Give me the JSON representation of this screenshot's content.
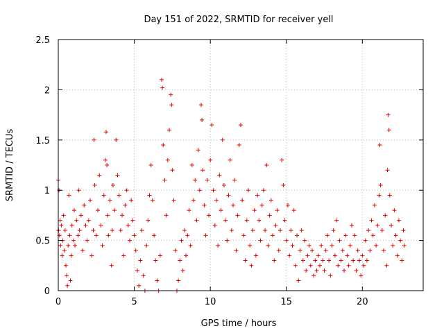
{
  "chart_data": {
    "type": "scatter",
    "title": "Day 151 of 2022, SRMTID for receiver yell",
    "xlabel": "GPS time / hours",
    "ylabel": "SRMTID / TECUs",
    "xlim": [
      0,
      24
    ],
    "ylim": [
      0,
      2.5
    ],
    "x_ticks": [
      0,
      5,
      10,
      15,
      20
    ],
    "x_tick_labels": [
      "0",
      "5",
      "10",
      "15",
      "20"
    ],
    "y_ticks": [
      0,
      0.5,
      1,
      1.5,
      2,
      2.5
    ],
    "y_tick_labels": [
      "0",
      "0.5",
      "1",
      "1.5",
      "2",
      "2.5"
    ],
    "grid": true,
    "marker": "+",
    "color": "#e00000",
    "series": [
      {
        "name": "SRMTID",
        "points": [
          [
            0.0,
            1.1
          ],
          [
            0.02,
            0.6
          ],
          [
            0.05,
            1.0
          ],
          [
            0.08,
            0.55
          ],
          [
            0.12,
            0.7
          ],
          [
            0.15,
            0.45
          ],
          [
            0.2,
            0.65
          ],
          [
            0.25,
            0.35
          ],
          [
            0.3,
            0.5
          ],
          [
            0.35,
            0.75
          ],
          [
            0.4,
            0.4
          ],
          [
            0.45,
            0.6
          ],
          [
            0.5,
            0.25
          ],
          [
            0.55,
            0.15
          ],
          [
            0.6,
            0.05
          ],
          [
            0.65,
            0.45
          ],
          [
            0.7,
            0.95
          ],
          [
            0.75,
            0.55
          ],
          [
            0.8,
            0.1
          ],
          [
            0.85,
            0.35
          ],
          [
            0.9,
            0.65
          ],
          [
            1.0,
            0.5
          ],
          [
            1.05,
            0.8
          ],
          [
            1.1,
            0.45
          ],
          [
            1.2,
            0.7
          ],
          [
            1.3,
            0.55
          ],
          [
            1.35,
            1.0
          ],
          [
            1.4,
            0.6
          ],
          [
            1.5,
            0.75
          ],
          [
            1.6,
            0.4
          ],
          [
            1.7,
            0.85
          ],
          [
            1.8,
            0.65
          ],
          [
            1.9,
            0.5
          ],
          [
            2.0,
            0.7
          ],
          [
            2.1,
            0.9
          ],
          [
            2.2,
            0.35
          ],
          [
            2.3,
            0.6
          ],
          [
            2.35,
            1.5
          ],
          [
            2.4,
            1.05
          ],
          [
            2.5,
            0.55
          ],
          [
            2.6,
            0.8
          ],
          [
            2.7,
            1.15
          ],
          [
            2.8,
            0.65
          ],
          [
            2.9,
            0.45
          ],
          [
            3.0,
            0.95
          ],
          [
            3.1,
            1.3
          ],
          [
            3.15,
            1.58
          ],
          [
            3.2,
            1.25
          ],
          [
            3.25,
            0.75
          ],
          [
            3.3,
            0.55
          ],
          [
            3.4,
            0.9
          ],
          [
            3.5,
            0.25
          ],
          [
            3.55,
            0.6
          ],
          [
            3.6,
            1.05
          ],
          [
            3.7,
            0.8
          ],
          [
            3.8,
            1.5
          ],
          [
            3.9,
            1.15
          ],
          [
            4.0,
            0.95
          ],
          [
            4.1,
            0.6
          ],
          [
            4.2,
            0.75
          ],
          [
            4.3,
            0.35
          ],
          [
            4.4,
            0.85
          ],
          [
            4.5,
            1.0
          ],
          [
            4.6,
            0.65
          ],
          [
            4.7,
            0.5
          ],
          [
            4.8,
            0.9
          ],
          [
            4.9,
            0.7
          ],
          [
            5.0,
            0.55
          ],
          [
            5.1,
            0.4
          ],
          [
            5.2,
            0.2
          ],
          [
            5.3,
            0.05
          ],
          [
            5.4,
            0.3
          ],
          [
            5.5,
            0.6
          ],
          [
            5.6,
            0.15
          ],
          [
            5.7,
            0.0
          ],
          [
            5.8,
            0.45
          ],
          [
            5.9,
            0.7
          ],
          [
            6.0,
            0.95
          ],
          [
            6.1,
            1.25
          ],
          [
            6.2,
            0.9
          ],
          [
            6.3,
            0.55
          ],
          [
            6.4,
            0.3
          ],
          [
            6.5,
            0.1
          ],
          [
            6.6,
            0.0
          ],
          [
            6.7,
            0.35
          ],
          [
            6.8,
            2.1
          ],
          [
            6.85,
            2.02
          ],
          [
            6.9,
            1.45
          ],
          [
            7.0,
            1.1
          ],
          [
            7.1,
            0.75
          ],
          [
            7.2,
            1.3
          ],
          [
            7.3,
            1.6
          ],
          [
            7.4,
            1.95
          ],
          [
            7.45,
            1.85
          ],
          [
            7.5,
            1.2
          ],
          [
            7.6,
            0.9
          ],
          [
            7.7,
            0.4
          ],
          [
            7.8,
            0.0
          ],
          [
            7.9,
            0.1
          ],
          [
            8.0,
            0.3
          ],
          [
            8.1,
            0.5
          ],
          [
            8.2,
            0.2
          ],
          [
            8.3,
            0.6
          ],
          [
            8.4,
            0.35
          ],
          [
            8.5,
            0.55
          ],
          [
            8.6,
            0.8
          ],
          [
            8.7,
            0.45
          ],
          [
            8.8,
            1.25
          ],
          [
            8.9,
            0.9
          ],
          [
            9.0,
            1.1
          ],
          [
            9.1,
            0.7
          ],
          [
            9.2,
            1.4
          ],
          [
            9.3,
            1.0
          ],
          [
            9.4,
            1.85
          ],
          [
            9.45,
            1.7
          ],
          [
            9.5,
            1.2
          ],
          [
            9.6,
            0.85
          ],
          [
            9.7,
            0.55
          ],
          [
            9.8,
            1.1
          ],
          [
            9.9,
            0.75
          ],
          [
            10.0,
            1.3
          ],
          [
            10.1,
            1.65
          ],
          [
            10.2,
            1.0
          ],
          [
            10.3,
            0.65
          ],
          [
            10.4,
            0.9
          ],
          [
            10.5,
            0.45
          ],
          [
            10.6,
            1.15
          ],
          [
            10.7,
            0.8
          ],
          [
            10.8,
            1.5
          ],
          [
            10.9,
            1.05
          ],
          [
            11.0,
            0.7
          ],
          [
            11.1,
            0.5
          ],
          [
            11.2,
            0.95
          ],
          [
            11.3,
            1.3
          ],
          [
            11.4,
            0.6
          ],
          [
            11.5,
            0.85
          ],
          [
            11.6,
            1.1
          ],
          [
            11.7,
            0.4
          ],
          [
            11.8,
            0.75
          ],
          [
            11.9,
            1.45
          ],
          [
            12.0,
            1.65
          ],
          [
            12.1,
            0.9
          ],
          [
            12.2,
            0.55
          ],
          [
            12.3,
            0.3
          ],
          [
            12.4,
            0.7
          ],
          [
            12.5,
            1.0
          ],
          [
            12.6,
            0.45
          ],
          [
            12.7,
            0.25
          ],
          [
            12.8,
            0.6
          ],
          [
            12.9,
            0.8
          ],
          [
            13.0,
            0.35
          ],
          [
            13.1,
            0.95
          ],
          [
            13.2,
            0.7
          ],
          [
            13.3,
            0.5
          ],
          [
            13.4,
            0.85
          ],
          [
            13.5,
            1.0
          ],
          [
            13.6,
            0.6
          ],
          [
            13.7,
            1.25
          ],
          [
            13.8,
            0.45
          ],
          [
            13.9,
            0.75
          ],
          [
            14.0,
            0.9
          ],
          [
            14.1,
            0.55
          ],
          [
            14.2,
            0.3
          ],
          [
            14.3,
            0.65
          ],
          [
            14.4,
            0.8
          ],
          [
            14.5,
            0.4
          ],
          [
            14.6,
            0.6
          ],
          [
            14.7,
            1.3
          ],
          [
            14.8,
            1.05
          ],
          [
            14.9,
            0.7
          ],
          [
            15.0,
            0.5
          ],
          [
            15.1,
            0.85
          ],
          [
            15.2,
            0.35
          ],
          [
            15.3,
            0.6
          ],
          [
            15.4,
            0.45
          ],
          [
            15.5,
            0.8
          ],
          [
            15.6,
            0.25
          ],
          [
            15.7,
            0.55
          ],
          [
            15.8,
            0.1
          ],
          [
            15.9,
            0.4
          ],
          [
            16.0,
            0.6
          ],
          [
            16.1,
            0.3
          ],
          [
            16.2,
            0.5
          ],
          [
            16.3,
            0.2
          ],
          [
            16.4,
            0.35
          ],
          [
            16.5,
            0.45
          ],
          [
            16.6,
            0.25
          ],
          [
            16.7,
            0.4
          ],
          [
            16.8,
            0.15
          ],
          [
            16.9,
            0.3
          ],
          [
            17.0,
            0.2
          ],
          [
            17.1,
            0.35
          ],
          [
            17.2,
            0.25
          ],
          [
            17.3,
            0.45
          ],
          [
            17.4,
            0.3
          ],
          [
            17.5,
            0.2
          ],
          [
            17.6,
            0.4
          ],
          [
            17.7,
            0.55
          ],
          [
            17.8,
            0.3
          ],
          [
            17.9,
            0.15
          ],
          [
            18.0,
            0.45
          ],
          [
            18.1,
            0.6
          ],
          [
            18.2,
            0.35
          ],
          [
            18.3,
            0.7
          ],
          [
            18.4,
            0.25
          ],
          [
            18.5,
            0.5
          ],
          [
            18.6,
            0.3
          ],
          [
            18.7,
            0.4
          ],
          [
            18.8,
            0.2
          ],
          [
            18.9,
            0.55
          ],
          [
            19.0,
            0.35
          ],
          [
            19.1,
            0.25
          ],
          [
            19.2,
            0.45
          ],
          [
            19.3,
            0.65
          ],
          [
            19.4,
            0.3
          ],
          [
            19.5,
            0.55
          ],
          [
            19.6,
            0.2
          ],
          [
            19.7,
            0.4
          ],
          [
            19.8,
            0.3
          ],
          [
            19.9,
            0.15
          ],
          [
            20.0,
            0.35
          ],
          [
            20.1,
            0.25
          ],
          [
            20.2,
            0.5
          ],
          [
            20.3,
            0.3
          ],
          [
            20.4,
            0.6
          ],
          [
            20.5,
            0.4
          ],
          [
            20.6,
            0.7
          ],
          [
            20.7,
            0.55
          ],
          [
            20.8,
            0.85
          ],
          [
            20.9,
            0.45
          ],
          [
            21.0,
            0.65
          ],
          [
            21.1,
            0.95
          ],
          [
            21.15,
            1.45
          ],
          [
            21.2,
            1.05
          ],
          [
            21.3,
            0.6
          ],
          [
            21.4,
            0.4
          ],
          [
            21.5,
            0.75
          ],
          [
            21.6,
            0.25
          ],
          [
            21.65,
            1.2
          ],
          [
            21.7,
            1.75
          ],
          [
            21.75,
            1.6
          ],
          [
            21.8,
            0.95
          ],
          [
            21.9,
            0.65
          ],
          [
            22.0,
            0.45
          ],
          [
            22.1,
            0.8
          ],
          [
            22.2,
            0.55
          ],
          [
            22.3,
            0.35
          ],
          [
            22.4,
            0.7
          ],
          [
            22.5,
            0.5
          ],
          [
            22.6,
            0.3
          ],
          [
            22.7,
            0.6
          ],
          [
            22.75,
            0.45
          ]
        ]
      }
    ]
  }
}
